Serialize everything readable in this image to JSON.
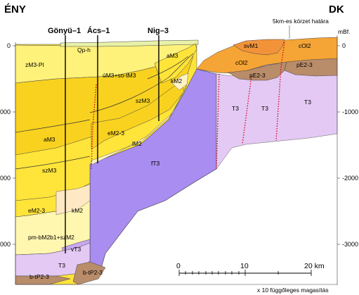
{
  "corners": {
    "left": "ÉNY",
    "right": "DK"
  },
  "top_note": "5km-es körzet határa",
  "datum": "mBf.",
  "depth_ticks_left": [
    "0",
    "-1000",
    "-2000",
    "-3000"
  ],
  "depth_ticks_right": [
    "0",
    "-1000",
    "-2000",
    "-3000"
  ],
  "wells": [
    "Gönyü–1",
    "Ács–1",
    "Nig–3"
  ],
  "units": {
    "qph": "Qp-h",
    "zm3pl": "zM3-Pl",
    "um3sotm3": "úM3+so-tM3",
    "am3_top": "aM3",
    "km2_top": "kM2",
    "szm3_top": "szM3",
    "em23_top": "eM2-3",
    "lm2": "lM2",
    "am3_left": "aM3",
    "szm3_left": "szM3",
    "em23_left": "eM2-3",
    "km2_left": "kM2",
    "pmbm2b1szm2": "pm-bM2b1+szM2",
    "vt3": "vT3",
    "t3_left": "T3",
    "btp23_left": "b-tP2-3",
    "btp23_mid": "b-tP2-3",
    "ft3": "fT3",
    "svm1": "svM1",
    "col2_mid": "cOl2",
    "col2_right": "cOl2",
    "pe23_mid": "pE2-3",
    "pe23_right": "pE2-3",
    "t3_a": "T3",
    "t3_b": "T3",
    "t3_c": "T3"
  },
  "scale_bar": {
    "labels": [
      "0",
      "10",
      "20 km"
    ]
  },
  "exaggeration_note": "x 10 függőleges magasítás",
  "colors": {
    "yellow_light": "#fff27a",
    "yellow": "#ffe43a",
    "yellow_dark": "#f8d21f",
    "pale": "#fff6b0",
    "orange": "#f5a436",
    "brown": "#b98c6a",
    "purple": "#a98df0",
    "lilac": "#e3c9f3",
    "fault_red": "#d6001f"
  }
}
